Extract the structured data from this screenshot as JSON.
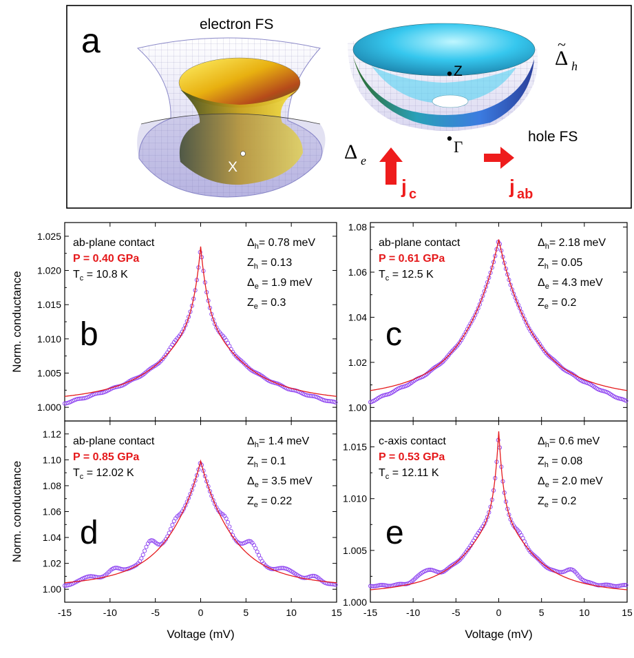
{
  "panel_a": {
    "letter": "a",
    "electron_fs_label": "electron FS",
    "hole_fs_label": "hole FS",
    "point_x": "X",
    "point_z": "Z",
    "point_gamma": "Γ",
    "delta_e_symbol": "Δ",
    "delta_e_sub": "e",
    "delta_h_symbol": "Δ",
    "delta_h_tilde": "~",
    "delta_h_sub": "h",
    "jc_main": "j",
    "jc_sub": "c",
    "jab_main": "j",
    "jab_sub": "ab",
    "arrow_color": "#ee1c1c"
  },
  "labels": {
    "ylabel": "Norm. conductance",
    "xlabel": "Voltage (mV)"
  },
  "colors": {
    "data_points": "#8a3df0",
    "fit_line": "#e5191b",
    "pressure_text": "#e5191b"
  },
  "chart_data": [
    {
      "type": "scatter",
      "panel": "b",
      "xlim": [
        -15,
        15
      ],
      "ylim": [
        0.998,
        1.027
      ],
      "yticks": [
        1.0,
        1.005,
        1.01,
        1.015,
        1.02,
        1.025
      ],
      "ytick_labels": [
        "1.000",
        "1.005",
        "1.010",
        "1.015",
        "1.020",
        "1.025"
      ],
      "xticks": [
        -15,
        -10,
        -5,
        0,
        5,
        10,
        15
      ],
      "xtick_labels": [],
      "show_ylabel": true,
      "show_xlabel": false,
      "contact": "ab-plane contact",
      "pressure": "P = 0.40 GPa",
      "tc": {
        "main": "T",
        "sub": "c",
        "rest": " = 10.8 K"
      },
      "params": [
        {
          "main": "Δ",
          "sub": "h",
          "rest": "= 0.78 meV"
        },
        {
          "main": "Z",
          "sub": "h",
          "rest": " = 0.13"
        },
        {
          "main": "Δ",
          "sub": "e",
          "rest": " = 1.9 meV"
        },
        {
          "main": "Z",
          "sub": "e",
          "rest": " = 0.3"
        }
      ],
      "peak": 1.0235,
      "edge_fit": 1.0016,
      "edge_data": 1.0006,
      "peak_width": 0.9,
      "tail_width": 5.5
    },
    {
      "type": "scatter",
      "panel": "c",
      "xlim": [
        -15,
        15
      ],
      "ylim": [
        0.994,
        1.082
      ],
      "yticks": [
        1.0,
        1.02,
        1.04,
        1.06,
        1.08
      ],
      "ytick_labels": [
        "1.00",
        "1.02",
        "1.04",
        "1.06",
        "1.08"
      ],
      "xticks": [
        -15,
        -10,
        -5,
        0,
        5,
        10,
        15
      ],
      "xtick_labels": [],
      "show_ylabel": false,
      "show_xlabel": false,
      "contact": "ab-plane contact",
      "pressure": "P = 0.61 GPa",
      "tc": {
        "main": "T",
        "sub": "c",
        "rest": " = 12.5 K"
      },
      "params": [
        {
          "main": "Δ",
          "sub": "h",
          "rest": "= 2.18 meV"
        },
        {
          "main": "Z",
          "sub": "h",
          "rest": " = 0.05"
        },
        {
          "main": "Δ",
          "sub": "e",
          "rest": " = 4.3 meV"
        },
        {
          "main": "Z",
          "sub": "e",
          "rest": " = 0.2"
        }
      ],
      "peak": 1.0745,
      "edge_fit": 1.0075,
      "edge_data": 1.0025,
      "peak_width": 2.2,
      "tail_width": 6.5
    },
    {
      "type": "scatter",
      "panel": "d",
      "xlim": [
        -15,
        15
      ],
      "ylim": [
        0.99,
        1.13
      ],
      "yticks": [
        1.0,
        1.02,
        1.04,
        1.06,
        1.08,
        1.1,
        1.12
      ],
      "ytick_labels": [
        "1.00",
        "1.02",
        "1.04",
        "1.06",
        "1.08",
        "1.10",
        "1.12"
      ],
      "xticks": [
        -15,
        -10,
        -5,
        0,
        5,
        10,
        15
      ],
      "xtick_labels": [
        "-15",
        "-10",
        "-5",
        "0",
        "5",
        "10",
        "15"
      ],
      "show_ylabel": true,
      "show_xlabel": true,
      "contact": "ab-plane contact",
      "pressure": "P = 0.85 GPa",
      "tc": {
        "main": "T",
        "sub": "c",
        "rest": " = 12.02 K"
      },
      "params": [
        {
          "main": "Δ",
          "sub": "h",
          "rest": "= 1.4 meV"
        },
        {
          "main": "Z",
          "sub": "h",
          "rest": " = 0.1"
        },
        {
          "main": "Δ",
          "sub": "e",
          "rest": " = 3.5 meV"
        },
        {
          "main": "Z",
          "sub": "e",
          "rest": " = 0.22"
        }
      ],
      "peak": 1.099,
      "edge_fit": 1.005,
      "edge_data": 1.003,
      "peak_width": 2.0,
      "tail_width": 5.5
    },
    {
      "type": "scatter",
      "panel": "e",
      "xlim": [
        -15,
        15
      ],
      "ylim": [
        1.0,
        1.0175
      ],
      "yticks": [
        1.0,
        1.005,
        1.01,
        1.015
      ],
      "ytick_labels": [
        "1.000",
        "1.005",
        "1.010",
        "1.015"
      ],
      "xticks": [
        -15,
        -10,
        -5,
        0,
        5,
        10,
        15
      ],
      "xtick_labels": [
        "-15",
        "-10",
        "-5",
        "0",
        "5",
        "10",
        "15"
      ],
      "show_ylabel": false,
      "show_xlabel": true,
      "contact": "c-axis contact",
      "pressure": "P = 0.53 GPa",
      "tc": {
        "main": "T",
        "sub": "c",
        "rest": " = 12.11 K"
      },
      "params": [
        {
          "main": "Δ",
          "sub": "h",
          "rest": "= 0.6 meV"
        },
        {
          "main": "Z",
          "sub": "h",
          "rest": " = 0.08"
        },
        {
          "main": "Δ",
          "sub": "e",
          "rest": " = 2.0 meV"
        },
        {
          "main": "Z",
          "sub": "e",
          "rest": " = 0.2"
        }
      ],
      "peak": 1.0165,
      "edge_fit": 1.0012,
      "edge_data": 1.0016,
      "peak_width": 0.6,
      "tail_width": 4.5
    }
  ]
}
